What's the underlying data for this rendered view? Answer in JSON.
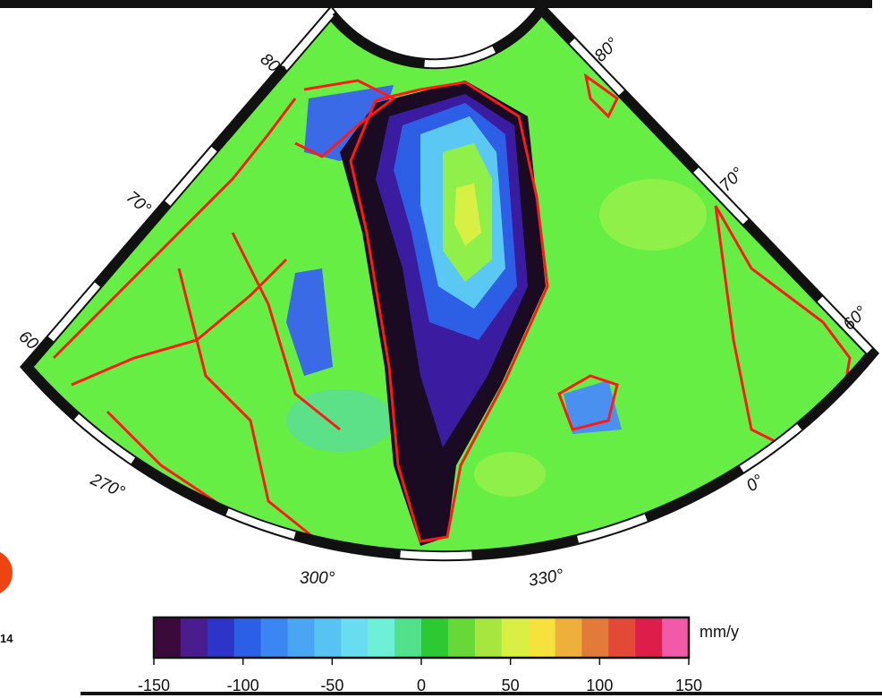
{
  "map": {
    "lat_labels": [
      "80°",
      "70°",
      "60°",
      "80°",
      "70°",
      "60°"
    ],
    "lon_labels": [
      "270°",
      "300°",
      "330°",
      "0°"
    ],
    "side_text": "14"
  },
  "colorbar": {
    "unit": "mm/y",
    "range": [
      -150,
      150
    ],
    "ticks": [
      -150,
      -100,
      -50,
      0,
      50,
      100,
      150
    ],
    "colors": [
      "#3b0a3a",
      "#4a1c8e",
      "#2d35c8",
      "#2a5fe6",
      "#3b86f2",
      "#4aa6f2",
      "#58c2f2",
      "#6adcf0",
      "#6ef0d8",
      "#52e08a",
      "#2ec832",
      "#66d838",
      "#a6e63e",
      "#d8f044",
      "#f6e23c",
      "#eeb03a",
      "#e27a3a",
      "#e24a36",
      "#de1e4a",
      "#f05aa8"
    ]
  }
}
